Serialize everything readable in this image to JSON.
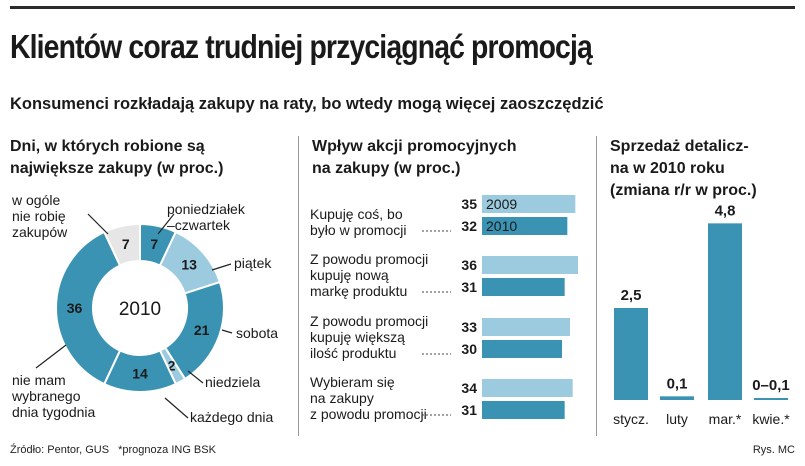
{
  "header": {
    "title": "Klientów coraz trudniej przyciągnąć promocją",
    "subtitle": "Konsumenci rozkładają zakupy na raty, bo wtedy mogą więcej zaoszczędzić"
  },
  "footer": {
    "source": "Źródło: Pentor, GUS",
    "forecast_note": "*prognoza ING BSK",
    "credit": "Rys. MC"
  },
  "colors": {
    "dark": "#3b93b4",
    "light": "#9ccbdf",
    "none": "#e6e6e6"
  },
  "chart_data": [
    {
      "type": "pie",
      "variant": "donut",
      "title_lines": [
        "Dni, w których robione są",
        "największe zakupy (w proc.)"
      ],
      "center_label": "2010",
      "slices": [
        {
          "label_lines": [
            "poniedziałek",
            "–czwartek"
          ],
          "value": 7,
          "shade": "dark"
        },
        {
          "label_lines": [
            "piątek"
          ],
          "value": 13,
          "shade": "light"
        },
        {
          "label_lines": [
            "sobota"
          ],
          "value": 21,
          "shade": "dark"
        },
        {
          "label_lines": [
            "niedziela"
          ],
          "value": 2,
          "shade": "light"
        },
        {
          "label_lines": [
            "każdego dnia"
          ],
          "value": 14,
          "shade": "dark"
        },
        {
          "label_lines": [
            "nie mam",
            "wybranego",
            "dnia tygodnia"
          ],
          "value": 36,
          "shade": "dark"
        },
        {
          "label_lines": [
            "w ogóle",
            "nie robię",
            "zakupów"
          ],
          "value": 7,
          "shade": "none"
        }
      ]
    },
    {
      "type": "bar",
      "orientation": "horizontal",
      "title_lines": [
        "Wpływ akcji promocyjnych",
        "na zakupy (w proc.)"
      ],
      "categories": [
        [
          "Kupuję coś, bo",
          "było w promocji"
        ],
        [
          "Z powodu promocji",
          "kupuję nową",
          "markę produktu"
        ],
        [
          "Z powodu promocji",
          "kupuję większą",
          "ilość produktu"
        ],
        [
          "Wybieram się",
          "na zakupy",
          "z powodu promocji"
        ]
      ],
      "series": [
        {
          "name": "2009",
          "values": [
            35,
            36,
            33,
            34
          ],
          "shade": "light"
        },
        {
          "name": "2010",
          "values": [
            32,
            31,
            30,
            31
          ],
          "shade": "dark"
        }
      ],
      "xlim": [
        0,
        40
      ]
    },
    {
      "type": "bar",
      "title_lines": [
        "Sprzedaż detalicz-",
        "na w 2010 roku",
        "(zmiana r/r w proc.)"
      ],
      "categories": [
        "stycz.",
        "luty",
        "mar.*",
        "kwie.*"
      ],
      "values": [
        2.5,
        0.1,
        4.8,
        0.05
      ],
      "value_labels": [
        "2,5",
        "0,1",
        "4,8",
        "0–0,1"
      ],
      "ylim": [
        0,
        5
      ]
    }
  ]
}
